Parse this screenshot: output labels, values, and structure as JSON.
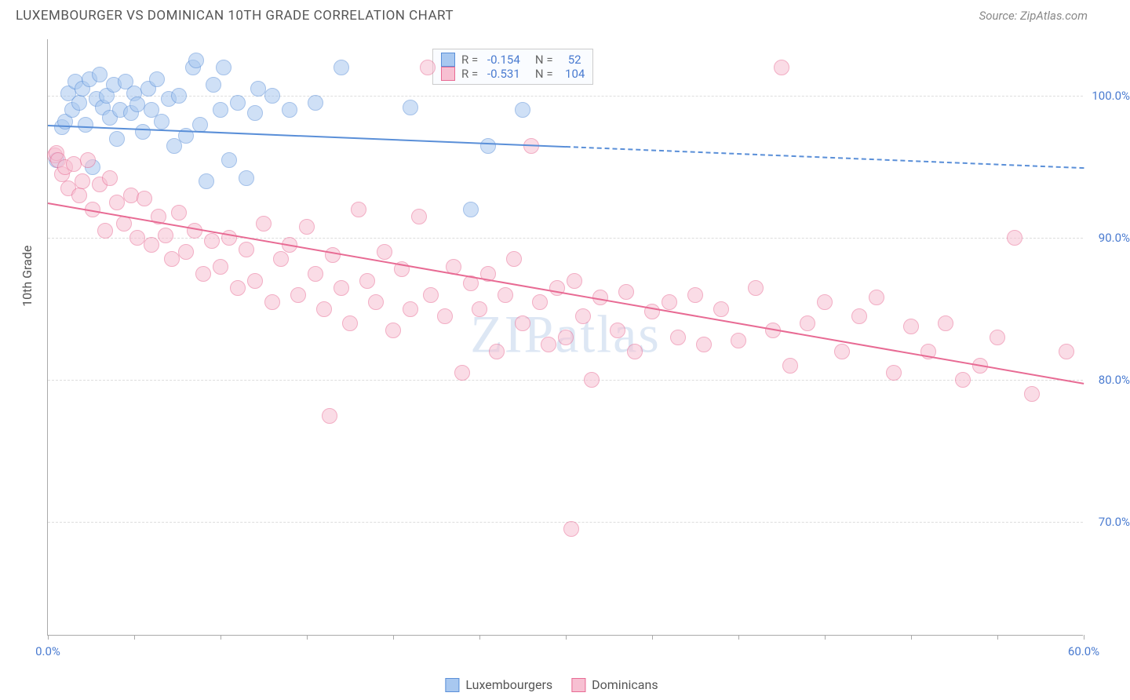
{
  "title": "LUXEMBOURGER VS DOMINICAN 10TH GRADE CORRELATION CHART",
  "source": "Source: ZipAtlas.com",
  "y_axis_label": "10th Grade",
  "watermark": {
    "part1": "ZIP",
    "part2": "atlas"
  },
  "chart": {
    "type": "scatter",
    "xlim": [
      0,
      60
    ],
    "ylim": [
      62,
      104
    ],
    "x_ticks": [
      0,
      5,
      10,
      15,
      20,
      25,
      30,
      35,
      40,
      45,
      50,
      55,
      60
    ],
    "x_tick_labels": {
      "0": "0.0%",
      "60": "60.0%"
    },
    "y_ticks": [
      70,
      80,
      90,
      100
    ],
    "y_tick_labels": {
      "70": "70.0%",
      "80": "80.0%",
      "90": "90.0%",
      "100": "100.0%"
    },
    "grid_color": "#dddddd",
    "axis_color": "#aaaaaa",
    "label_color": "#4a7bd0",
    "background_color": "#ffffff",
    "marker_radius": 10,
    "marker_opacity": 0.55,
    "series": [
      {
        "name": "Luxembourgers",
        "color_fill": "#a8c8f0",
        "color_stroke": "#5a8fd8",
        "R": "-0.154",
        "N": "52",
        "trend": {
          "x1": 0,
          "y1": 98.0,
          "x2": 30,
          "y2": 96.5,
          "x2_dash": 60,
          "y2_dash": 95.0
        },
        "points": [
          [
            0.5,
            95.5
          ],
          [
            0.8,
            97.8
          ],
          [
            1.0,
            98.2
          ],
          [
            1.2,
            100.2
          ],
          [
            1.4,
            99.0
          ],
          [
            1.6,
            101.0
          ],
          [
            1.8,
            99.5
          ],
          [
            2.0,
            100.5
          ],
          [
            2.2,
            98.0
          ],
          [
            2.4,
            101.2
          ],
          [
            2.6,
            95.0
          ],
          [
            2.8,
            99.8
          ],
          [
            3.0,
            101.5
          ],
          [
            3.2,
            99.2
          ],
          [
            3.4,
            100.0
          ],
          [
            3.6,
            98.5
          ],
          [
            3.8,
            100.8
          ],
          [
            4.0,
            97.0
          ],
          [
            4.2,
            99.0
          ],
          [
            4.5,
            101.0
          ],
          [
            4.8,
            98.8
          ],
          [
            5.0,
            100.2
          ],
          [
            5.2,
            99.4
          ],
          [
            5.5,
            97.5
          ],
          [
            5.8,
            100.5
          ],
          [
            6.0,
            99.0
          ],
          [
            6.3,
            101.2
          ],
          [
            6.6,
            98.2
          ],
          [
            7.0,
            99.8
          ],
          [
            7.3,
            96.5
          ],
          [
            7.6,
            100.0
          ],
          [
            8.0,
            97.2
          ],
          [
            8.4,
            102.0
          ],
          [
            8.6,
            102.5
          ],
          [
            8.8,
            98.0
          ],
          [
            9.2,
            94.0
          ],
          [
            9.6,
            100.8
          ],
          [
            10.0,
            99.0
          ],
          [
            10.2,
            102.0
          ],
          [
            10.5,
            95.5
          ],
          [
            11.0,
            99.5
          ],
          [
            11.5,
            94.2
          ],
          [
            12.0,
            98.8
          ],
          [
            12.2,
            100.5
          ],
          [
            13.0,
            100.0
          ],
          [
            14.0,
            99.0
          ],
          [
            15.5,
            99.5
          ],
          [
            17.0,
            102.0
          ],
          [
            21.0,
            99.2
          ],
          [
            24.5,
            92.0
          ],
          [
            25.5,
            96.5
          ],
          [
            27.5,
            99.0
          ]
        ]
      },
      {
        "name": "Dominicans",
        "color_fill": "#f7c0d2",
        "color_stroke": "#e86b94",
        "R": "-0.531",
        "N": "104",
        "trend": {
          "x1": 0,
          "y1": 92.5,
          "x2": 60,
          "y2": 79.8
        },
        "points": [
          [
            0.4,
            95.8
          ],
          [
            0.5,
            96.0
          ],
          [
            0.6,
            95.5
          ],
          [
            0.8,
            94.5
          ],
          [
            1.0,
            95.0
          ],
          [
            1.2,
            93.5
          ],
          [
            1.5,
            95.2
          ],
          [
            1.8,
            93.0
          ],
          [
            2.0,
            94.0
          ],
          [
            2.3,
            95.5
          ],
          [
            2.6,
            92.0
          ],
          [
            3.0,
            93.8
          ],
          [
            3.3,
            90.5
          ],
          [
            3.6,
            94.2
          ],
          [
            4.0,
            92.5
          ],
          [
            4.4,
            91.0
          ],
          [
            4.8,
            93.0
          ],
          [
            5.2,
            90.0
          ],
          [
            5.6,
            92.8
          ],
          [
            6.0,
            89.5
          ],
          [
            6.4,
            91.5
          ],
          [
            6.8,
            90.2
          ],
          [
            7.2,
            88.5
          ],
          [
            7.6,
            91.8
          ],
          [
            8.0,
            89.0
          ],
          [
            8.5,
            90.5
          ],
          [
            9.0,
            87.5
          ],
          [
            9.5,
            89.8
          ],
          [
            10.0,
            88.0
          ],
          [
            10.5,
            90.0
          ],
          [
            11.0,
            86.5
          ],
          [
            11.5,
            89.2
          ],
          [
            12.0,
            87.0
          ],
          [
            12.5,
            91.0
          ],
          [
            13.0,
            85.5
          ],
          [
            13.5,
            88.5
          ],
          [
            14.0,
            89.5
          ],
          [
            14.5,
            86.0
          ],
          [
            15.0,
            90.8
          ],
          [
            15.5,
            87.5
          ],
          [
            16.0,
            85.0
          ],
          [
            16.3,
            77.5
          ],
          [
            16.5,
            88.8
          ],
          [
            17.0,
            86.5
          ],
          [
            17.5,
            84.0
          ],
          [
            18.0,
            92.0
          ],
          [
            18.5,
            87.0
          ],
          [
            19.0,
            85.5
          ],
          [
            19.5,
            89.0
          ],
          [
            20.0,
            83.5
          ],
          [
            20.5,
            87.8
          ],
          [
            21.0,
            85.0
          ],
          [
            21.5,
            91.5
          ],
          [
            22.0,
            102.0
          ],
          [
            22.2,
            86.0
          ],
          [
            23.0,
            84.5
          ],
          [
            23.5,
            88.0
          ],
          [
            24.0,
            80.5
          ],
          [
            24.5,
            86.8
          ],
          [
            25.0,
            85.0
          ],
          [
            25.5,
            87.5
          ],
          [
            26.0,
            82.0
          ],
          [
            26.5,
            86.0
          ],
          [
            27.0,
            88.5
          ],
          [
            27.5,
            84.0
          ],
          [
            28.0,
            96.5
          ],
          [
            28.5,
            85.5
          ],
          [
            29.0,
            82.5
          ],
          [
            29.5,
            86.5
          ],
          [
            30.0,
            83.0
          ],
          [
            30.3,
            69.5
          ],
          [
            30.5,
            87.0
          ],
          [
            31.0,
            84.5
          ],
          [
            31.5,
            80.0
          ],
          [
            32.0,
            85.8
          ],
          [
            33.0,
            83.5
          ],
          [
            33.5,
            86.2
          ],
          [
            34.0,
            82.0
          ],
          [
            35.0,
            84.8
          ],
          [
            36.0,
            85.5
          ],
          [
            36.5,
            83.0
          ],
          [
            37.5,
            86.0
          ],
          [
            38.0,
            82.5
          ],
          [
            39.0,
            85.0
          ],
          [
            40.0,
            82.8
          ],
          [
            41.0,
            86.5
          ],
          [
            42.0,
            83.5
          ],
          [
            42.5,
            102.0
          ],
          [
            43.0,
            81.0
          ],
          [
            44.0,
            84.0
          ],
          [
            45.0,
            85.5
          ],
          [
            46.0,
            82.0
          ],
          [
            47.0,
            84.5
          ],
          [
            48.0,
            85.8
          ],
          [
            49.0,
            80.5
          ],
          [
            50.0,
            83.8
          ],
          [
            51.0,
            82.0
          ],
          [
            52.0,
            84.0
          ],
          [
            53.0,
            80.0
          ],
          [
            54.0,
            81.0
          ],
          [
            55.0,
            83.0
          ],
          [
            56.0,
            90.0
          ],
          [
            57.0,
            79.0
          ],
          [
            59.0,
            82.0
          ]
        ]
      }
    ]
  },
  "legend_box": {
    "rows": [
      {
        "swatch": 0,
        "text": "R = -0.154   N =   52"
      },
      {
        "swatch": 1,
        "text": "R = -0.531   N =  104"
      }
    ]
  },
  "bottom_legend": [
    {
      "swatch": 0,
      "label": "Luxembourgers"
    },
    {
      "swatch": 1,
      "label": "Dominicans"
    }
  ]
}
